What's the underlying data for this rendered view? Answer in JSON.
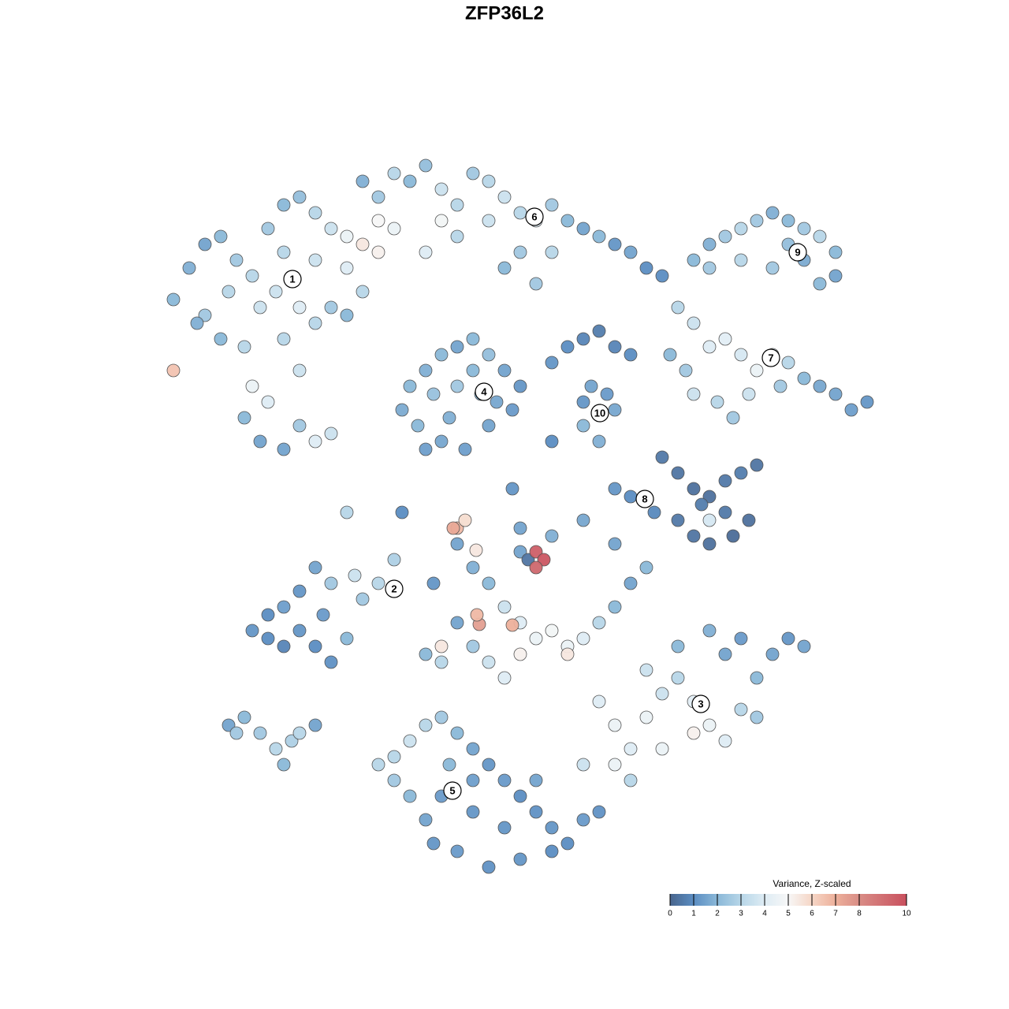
{
  "chart_data": {
    "type": "scatter",
    "title": "ZFP36L2",
    "xlim": [
      20,
      113
    ],
    "ylim": [
      19,
      110
    ],
    "point_stroke": "#555555",
    "x": [
      22,
      24,
      26,
      28,
      30,
      32,
      34,
      36,
      38,
      40,
      42,
      44,
      46,
      48,
      44,
      40,
      36,
      33,
      31,
      32,
      34,
      31,
      33,
      36,
      38,
      40,
      42,
      38,
      36,
      40,
      42,
      28,
      26,
      22,
      25,
      29,
      35,
      38,
      44,
      46,
      46,
      48,
      50,
      52,
      54,
      56,
      58,
      60,
      62,
      64,
      66,
      68,
      70,
      72,
      74,
      76,
      78,
      80,
      82,
      62,
      58,
      54,
      50,
      48,
      56,
      66,
      70,
      64,
      68,
      84,
      52,
      54,
      56,
      58,
      60,
      62,
      64,
      66,
      65,
      62,
      59,
      56,
      53,
      51,
      55,
      58,
      61,
      63,
      57,
      60,
      70,
      72,
      74,
      76,
      78,
      80,
      75,
      77,
      74,
      76,
      78,
      88,
      90,
      92,
      94,
      96,
      98,
      100,
      102,
      104,
      106,
      106,
      104,
      98,
      94,
      90,
      102,
      100,
      86,
      88,
      90,
      92,
      94,
      96,
      98,
      100,
      102,
      104,
      106,
      108,
      110,
      88,
      91,
      93,
      95,
      99,
      85,
      87,
      84,
      86,
      88,
      90,
      92,
      94,
      96,
      95,
      93,
      90,
      88,
      86,
      92,
      83,
      80,
      78,
      90,
      89,
      34,
      36,
      38,
      40,
      42,
      44,
      46,
      48,
      50,
      45,
      42,
      40,
      38,
      36,
      34,
      41,
      32,
      29,
      31,
      33,
      35,
      37,
      36,
      38,
      40,
      30,
      58,
      60,
      62,
      64,
      66,
      68,
      70,
      72,
      74,
      76,
      78,
      80,
      82,
      66,
      70,
      74,
      78,
      60,
      62,
      64,
      56,
      58,
      55,
      67,
      68,
      69,
      68,
      60.8,
      60.5,
      65,
      58,
      57.5,
      59,
      60.4,
      56,
      66,
      72,
      54,
      76,
      78,
      80,
      82,
      84,
      86,
      88,
      90,
      92,
      94,
      96,
      98,
      100,
      102,
      94,
      92,
      90,
      86,
      82,
      80,
      78,
      74,
      88,
      84,
      96,
      50,
      52,
      54,
      56,
      58,
      60,
      62,
      64,
      66,
      68,
      70,
      72,
      74,
      76,
      70,
      66,
      62,
      58,
      55,
      54,
      52,
      50,
      48,
      56,
      60,
      64,
      60,
      57,
      68,
      44,
      51,
      54,
      65,
      70,
      74,
      66
    ],
    "y": [
      91,
      95,
      98,
      99,
      96,
      94,
      100,
      103,
      104,
      102,
      100,
      99,
      98,
      97,
      95,
      96,
      97,
      90,
      85,
      80,
      78,
      76,
      73,
      72,
      75,
      73,
      74,
      82,
      86,
      88,
      90,
      86,
      89,
      82,
      88,
      92,
      92,
      90,
      89,
      92,
      106,
      104,
      107,
      106,
      108,
      105,
      103,
      107,
      106,
      104,
      102,
      101,
      103,
      101,
      100,
      99,
      98,
      97,
      95,
      101,
      99,
      97,
      100,
      101,
      101,
      97,
      97,
      95,
      93,
      94,
      80,
      82,
      84,
      85,
      86,
      84,
      82,
      80,
      77,
      75,
      72,
      73,
      75,
      77,
      79,
      80,
      79,
      78,
      76,
      82,
      83,
      85,
      86,
      87,
      85,
      84,
      80,
      79,
      75,
      73,
      77,
      96,
      98,
      99,
      100,
      101,
      102,
      101,
      100,
      99,
      97,
      94,
      93,
      95,
      96,
      95,
      96,
      98,
      90,
      88,
      85,
      86,
      84,
      82,
      84,
      83,
      81,
      80,
      79,
      77,
      78,
      79,
      78,
      76,
      79,
      80,
      84,
      82,
      71,
      69,
      67,
      66,
      68,
      69,
      70,
      63,
      61,
      60,
      61,
      63,
      64,
      64,
      66,
      67,
      63,
      65,
      48,
      47,
      49,
      47,
      45,
      48,
      53,
      55,
      58,
      56,
      55,
      57,
      54,
      52,
      51,
      51,
      49,
      37,
      38,
      36,
      34,
      35,
      32,
      36,
      37,
      36,
      60,
      57,
      55,
      52,
      50,
      48,
      49,
      47,
      48,
      50,
      52,
      55,
      57,
      59,
      61,
      63,
      60,
      47,
      45,
      43,
      45,
      50,
      55,
      58,
      59,
      58,
      57,
      49.8,
      51,
      49.7,
      62,
      62,
      63,
      59.2,
      47,
      46,
      46,
      46,
      40,
      37,
      34,
      38,
      41,
      43,
      40,
      37,
      35,
      39,
      43,
      46,
      48,
      47,
      48,
      46,
      49,
      47,
      44,
      30,
      32,
      32,
      36,
      34,
      38,
      33,
      35,
      37,
      38,
      36,
      34,
      32,
      30,
      28,
      26,
      24,
      22,
      25,
      26,
      21,
      20,
      19,
      21,
      22,
      25,
      28,
      30,
      32,
      28,
      26,
      24,
      30,
      32,
      30,
      64,
      64,
      72,
      67,
      73,
      78,
      62
    ],
    "values": [
      2,
      1.8,
      1.5,
      2,
      2.5,
      3,
      2.5,
      2,
      2.2,
      3,
      3.5,
      4.5,
      5.5,
      5.2,
      4,
      3.5,
      3,
      3.5,
      3,
      4.5,
      4,
      2,
      1.5,
      1.5,
      2.5,
      4,
      3.5,
      3.5,
      3,
      3,
      2.5,
      2,
      2.5,
      6.5,
      1.8,
      3,
      3.5,
      4,
      2,
      3,
      1.8,
      2.5,
      3,
      2,
      2.2,
      3.5,
      3,
      2.5,
      3,
      3.5,
      3,
      4,
      2.5,
      2,
      1.5,
      2,
      1.2,
      1.5,
      1,
      3.5,
      3,
      4,
      4.5,
      5,
      4.8,
      2.5,
      3,
      2,
      2.5,
      1,
      2,
      1.8,
      2,
      1.5,
      2,
      2.2,
      1.5,
      1.2,
      1.3,
      1.5,
      1.4,
      1.6,
      2,
      1.7,
      2.3,
      2.5,
      1.8,
      1.6,
      1.8,
      2,
      1.2,
      1,
      0.8,
      0.6,
      0.8,
      1,
      1.5,
      1.3,
      2,
      1.8,
      1.6,
      2,
      1.8,
      2.5,
      3,
      2.5,
      1.8,
      2,
      2.5,
      3,
      2,
      1.5,
      2,
      2.5,
      3,
      2.5,
      1.7,
      2.2,
      3,
      3.5,
      4,
      4.2,
      3.8,
      4.5,
      4,
      3,
      2,
      1.6,
      1.5,
      1.4,
      1.2,
      3.5,
      3,
      2.5,
      3.5,
      2.5,
      2,
      2.5,
      0.5,
      0.4,
      0.3,
      0.3,
      0.5,
      0.6,
      0.4,
      0.3,
      0.2,
      0.3,
      0.4,
      0.5,
      0.5,
      0.9,
      1,
      1.2,
      3.8,
      0.6,
      1,
      0.8,
      1.2,
      1,
      1.1,
      2,
      2.5,
      3,
      2.8,
      3.5,
      2.5,
      1.5,
      1.2,
      1.4,
      1,
      1.3,
      1.2,
      1.5,
      2,
      2.5,
      3,
      2.8,
      2,
      3,
      1.5,
      2.5,
      1.5,
      1.8,
      2,
      3.5,
      4,
      4.5,
      4.8,
      4.5,
      4,
      3,
      2,
      1.5,
      2,
      1.5,
      1.8,
      1.6,
      1.5,
      2.5,
      3.5,
      4,
      3,
      1.5,
      1.2,
      0.4,
      9.5,
      9.8,
      9.2,
      7.5,
      6.8,
      7,
      6.8,
      7.2,
      5.8,
      5.5,
      5.5,
      5.2,
      5.5,
      2,
      4,
      4.5,
      4,
      4.5,
      3.5,
      3,
      4.2,
      4.5,
      4,
      3,
      2,
      1.5,
      1.2,
      1.5,
      1.3,
      1.5,
      1.8,
      2,
      3.5,
      3,
      4.5,
      3.5,
      5.2,
      4.5,
      2.5,
      3,
      3.5,
      3,
      2.5,
      2,
      1.5,
      1.2,
      1.3,
      1,
      1.1,
      1.2,
      1,
      1.3,
      1.1,
      1,
      1.2,
      1.1,
      1.3,
      1.2,
      1.5,
      2,
      2.5,
      3,
      1.3,
      1.2,
      1.2,
      1.4,
      2,
      1.5,
      3,
      1,
      1.4,
      1.2,
      1,
      1.2,
      1.5
    ],
    "cluster_labels": [
      {
        "label": "1",
        "x": 37.1,
        "y": 93.6
      },
      {
        "label": "2",
        "x": 50,
        "y": 54.3
      },
      {
        "label": "3",
        "x": 88.9,
        "y": 39.7
      },
      {
        "label": "4",
        "x": 61.4,
        "y": 79.3
      },
      {
        "label": "5",
        "x": 57.4,
        "y": 28.7
      },
      {
        "label": "6",
        "x": 67.8,
        "y": 101.5
      },
      {
        "label": "7",
        "x": 97.8,
        "y": 83.6
      },
      {
        "label": "8",
        "x": 81.8,
        "y": 65.7
      },
      {
        "label": "9",
        "x": 101.2,
        "y": 97
      },
      {
        "label": "10",
        "x": 76.1,
        "y": 76.6
      }
    ],
    "colorbar": {
      "title": "Variance, Z-scaled",
      "lim": [
        0,
        10
      ],
      "ticks": [
        0,
        1,
        2,
        3,
        4,
        5,
        6,
        7,
        8,
        10
      ],
      "stops": [
        {
          "value": 0,
          "color": "#48658d"
        },
        {
          "value": 1,
          "color": "#5b8dc2"
        },
        {
          "value": 2,
          "color": "#8ab8d8"
        },
        {
          "value": 3,
          "color": "#b7d6e8"
        },
        {
          "value": 4,
          "color": "#deecf4"
        },
        {
          "value": 5,
          "color": "#f7f7f7"
        },
        {
          "value": 6,
          "color": "#f6d6c6"
        },
        {
          "value": 7,
          "color": "#edb09b"
        },
        {
          "value": 8,
          "color": "#d98d86"
        },
        {
          "value": 10,
          "color": "#c9505e"
        }
      ]
    }
  }
}
